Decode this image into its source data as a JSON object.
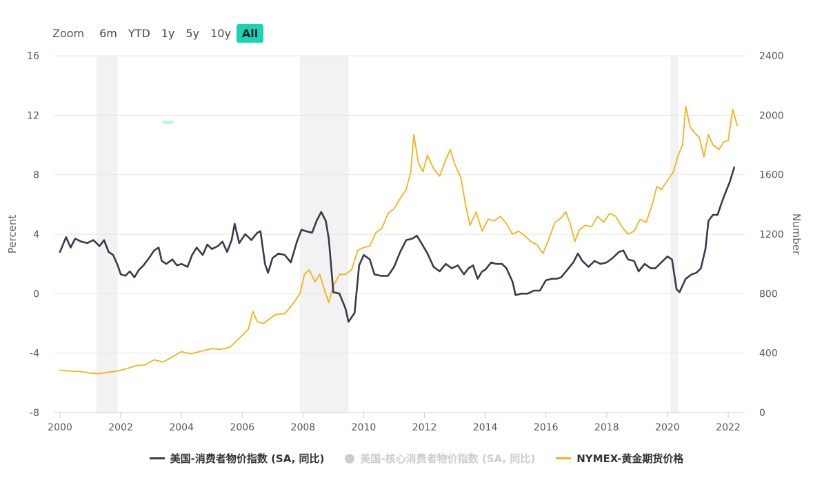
{
  "zoom": {
    "label": "Zoom",
    "buttons": [
      "6m",
      "YTD",
      "1y",
      "5y",
      "10y",
      "All"
    ],
    "active": "All",
    "active_color": "#18d4b4"
  },
  "chart_data": {
    "type": "line",
    "x_ticks": [
      "2000",
      "2002",
      "2004",
      "2006",
      "2008",
      "2010",
      "2012",
      "2014",
      "2016",
      "2018",
      "2020",
      "2022"
    ],
    "xlim": [
      2000,
      2022.5
    ],
    "left_axis": {
      "label": "Percent",
      "ylim": [
        -8,
        16
      ],
      "ticks": [
        -8,
        -4,
        0,
        4,
        8,
        12,
        16
      ]
    },
    "right_axis": {
      "label": "Number",
      "ylim": [
        0,
        2400
      ],
      "ticks": [
        0,
        400,
        800,
        1200,
        1600,
        2000,
        2400
      ]
    },
    "recession_bands": [
      [
        2001.2,
        2001.9
      ],
      [
        2007.9,
        2009.5
      ],
      [
        2020.1,
        2020.35
      ]
    ],
    "grid": "horizontal",
    "legend_position": "bottom-center",
    "series": [
      {
        "name": "美国-消费者物价指数 (SA, 同比)",
        "axis": "left",
        "color": "#363b4d",
        "visible": true,
        "points": [
          [
            2000.0,
            2.8
          ],
          [
            2000.2,
            3.8
          ],
          [
            2000.35,
            3.1
          ],
          [
            2000.5,
            3.7
          ],
          [
            2000.7,
            3.5
          ],
          [
            2000.9,
            3.4
          ],
          [
            2001.1,
            3.6
          ],
          [
            2001.3,
            3.2
          ],
          [
            2001.45,
            3.6
          ],
          [
            2001.6,
            2.8
          ],
          [
            2001.75,
            2.6
          ],
          [
            2001.9,
            1.9
          ],
          [
            2002.0,
            1.3
          ],
          [
            2002.15,
            1.2
          ],
          [
            2002.3,
            1.5
          ],
          [
            2002.45,
            1.1
          ],
          [
            2002.6,
            1.6
          ],
          [
            2002.75,
            1.9
          ],
          [
            2002.9,
            2.3
          ],
          [
            2003.1,
            2.9
          ],
          [
            2003.25,
            3.1
          ],
          [
            2003.35,
            2.2
          ],
          [
            2003.5,
            2.0
          ],
          [
            2003.7,
            2.3
          ],
          [
            2003.85,
            1.9
          ],
          [
            2004.0,
            2.0
          ],
          [
            2004.2,
            1.8
          ],
          [
            2004.35,
            2.6
          ],
          [
            2004.5,
            3.1
          ],
          [
            2004.7,
            2.6
          ],
          [
            2004.85,
            3.3
          ],
          [
            2005.0,
            3.0
          ],
          [
            2005.2,
            3.2
          ],
          [
            2005.35,
            3.5
          ],
          [
            2005.5,
            2.8
          ],
          [
            2005.65,
            3.6
          ],
          [
            2005.75,
            4.7
          ],
          [
            2005.9,
            3.4
          ],
          [
            2006.1,
            4.0
          ],
          [
            2006.3,
            3.6
          ],
          [
            2006.5,
            4.1
          ],
          [
            2006.6,
            4.2
          ],
          [
            2006.75,
            2.0
          ],
          [
            2006.85,
            1.4
          ],
          [
            2007.0,
            2.4
          ],
          [
            2007.2,
            2.7
          ],
          [
            2007.4,
            2.6
          ],
          [
            2007.6,
            2.1
          ],
          [
            2007.8,
            3.5
          ],
          [
            2007.95,
            4.3
          ],
          [
            2008.1,
            4.2
          ],
          [
            2008.3,
            4.1
          ],
          [
            2008.45,
            4.9
          ],
          [
            2008.6,
            5.5
          ],
          [
            2008.75,
            4.9
          ],
          [
            2008.85,
            3.7
          ],
          [
            2009.0,
            0.1
          ],
          [
            2009.2,
            0.0
          ],
          [
            2009.4,
            -1.0
          ],
          [
            2009.5,
            -1.9
          ],
          [
            2009.7,
            -1.3
          ],
          [
            2009.85,
            1.9
          ],
          [
            2010.0,
            2.6
          ],
          [
            2010.2,
            2.3
          ],
          [
            2010.35,
            1.3
          ],
          [
            2010.55,
            1.2
          ],
          [
            2010.8,
            1.2
          ],
          [
            2011.0,
            1.8
          ],
          [
            2011.2,
            2.8
          ],
          [
            2011.4,
            3.6
          ],
          [
            2011.6,
            3.7
          ],
          [
            2011.75,
            3.9
          ],
          [
            2011.9,
            3.4
          ],
          [
            2012.1,
            2.7
          ],
          [
            2012.3,
            1.8
          ],
          [
            2012.5,
            1.5
          ],
          [
            2012.7,
            2.0
          ],
          [
            2012.9,
            1.7
          ],
          [
            2013.1,
            1.9
          ],
          [
            2013.3,
            1.3
          ],
          [
            2013.45,
            1.7
          ],
          [
            2013.6,
            1.9
          ],
          [
            2013.75,
            1.0
          ],
          [
            2013.9,
            1.5
          ],
          [
            2014.0,
            1.6
          ],
          [
            2014.2,
            2.1
          ],
          [
            2014.35,
            2.0
          ],
          [
            2014.55,
            2.0
          ],
          [
            2014.7,
            1.7
          ],
          [
            2014.9,
            0.8
          ],
          [
            2015.0,
            -0.1
          ],
          [
            2015.2,
            0.0
          ],
          [
            2015.4,
            0.0
          ],
          [
            2015.6,
            0.2
          ],
          [
            2015.8,
            0.2
          ],
          [
            2016.0,
            0.9
          ],
          [
            2016.2,
            1.0
          ],
          [
            2016.35,
            1.0
          ],
          [
            2016.5,
            1.1
          ],
          [
            2016.7,
            1.6
          ],
          [
            2016.9,
            2.1
          ],
          [
            2017.05,
            2.7
          ],
          [
            2017.2,
            2.2
          ],
          [
            2017.4,
            1.8
          ],
          [
            2017.6,
            2.2
          ],
          [
            2017.8,
            2.0
          ],
          [
            2018.0,
            2.1
          ],
          [
            2018.2,
            2.4
          ],
          [
            2018.4,
            2.8
          ],
          [
            2018.55,
            2.9
          ],
          [
            2018.7,
            2.3
          ],
          [
            2018.9,
            2.2
          ],
          [
            2019.05,
            1.5
          ],
          [
            2019.25,
            2.0
          ],
          [
            2019.45,
            1.7
          ],
          [
            2019.6,
            1.7
          ],
          [
            2019.8,
            2.1
          ],
          [
            2020.0,
            2.5
          ],
          [
            2020.15,
            2.3
          ],
          [
            2020.3,
            0.3
          ],
          [
            2020.4,
            0.1
          ],
          [
            2020.6,
            1.0
          ],
          [
            2020.8,
            1.3
          ],
          [
            2020.95,
            1.4
          ],
          [
            2021.1,
            1.7
          ],
          [
            2021.25,
            3.0
          ],
          [
            2021.35,
            4.9
          ],
          [
            2021.5,
            5.3
          ],
          [
            2021.65,
            5.3
          ],
          [
            2021.8,
            6.2
          ],
          [
            2021.95,
            7.0
          ],
          [
            2022.05,
            7.5
          ],
          [
            2022.2,
            8.5
          ]
        ]
      },
      {
        "name": "美国-核心消费者物价指数 (SA, 同比)",
        "axis": "left",
        "color": "#cccccc",
        "visible": false,
        "points": []
      },
      {
        "name": "NYMEX-黄金期货价格",
        "axis": "right",
        "color": "#f5b114",
        "visible": true,
        "points": [
          [
            2000.0,
            285
          ],
          [
            2000.3,
            280
          ],
          [
            2000.7,
            275
          ],
          [
            2001.0,
            265
          ],
          [
            2001.3,
            262
          ],
          [
            2001.6,
            272
          ],
          [
            2001.9,
            280
          ],
          [
            2002.2,
            295
          ],
          [
            2002.5,
            315
          ],
          [
            2002.8,
            320
          ],
          [
            2003.1,
            355
          ],
          [
            2003.4,
            340
          ],
          [
            2003.7,
            375
          ],
          [
            2004.0,
            410
          ],
          [
            2004.3,
            395
          ],
          [
            2004.7,
            415
          ],
          [
            2005.0,
            430
          ],
          [
            2005.3,
            425
          ],
          [
            2005.6,
            440
          ],
          [
            2005.9,
            500
          ],
          [
            2006.2,
            560
          ],
          [
            2006.35,
            680
          ],
          [
            2006.5,
            610
          ],
          [
            2006.7,
            600
          ],
          [
            2006.9,
            630
          ],
          [
            2007.1,
            660
          ],
          [
            2007.4,
            665
          ],
          [
            2007.7,
            740
          ],
          [
            2007.9,
            800
          ],
          [
            2008.05,
            930
          ],
          [
            2008.2,
            960
          ],
          [
            2008.4,
            880
          ],
          [
            2008.55,
            930
          ],
          [
            2008.7,
            830
          ],
          [
            2008.85,
            740
          ],
          [
            2009.0,
            850
          ],
          [
            2009.2,
            930
          ],
          [
            2009.4,
            930
          ],
          [
            2009.6,
            960
          ],
          [
            2009.8,
            1090
          ],
          [
            2010.0,
            1110
          ],
          [
            2010.2,
            1120
          ],
          [
            2010.4,
            1210
          ],
          [
            2010.6,
            1240
          ],
          [
            2010.8,
            1340
          ],
          [
            2011.0,
            1370
          ],
          [
            2011.2,
            1440
          ],
          [
            2011.4,
            1500
          ],
          [
            2011.55,
            1620
          ],
          [
            2011.65,
            1870
          ],
          [
            2011.8,
            1680
          ],
          [
            2011.95,
            1620
          ],
          [
            2012.1,
            1730
          ],
          [
            2012.3,
            1640
          ],
          [
            2012.5,
            1590
          ],
          [
            2012.7,
            1700
          ],
          [
            2012.85,
            1770
          ],
          [
            2013.0,
            1670
          ],
          [
            2013.2,
            1580
          ],
          [
            2013.35,
            1400
          ],
          [
            2013.5,
            1260
          ],
          [
            2013.7,
            1350
          ],
          [
            2013.9,
            1220
          ],
          [
            2014.1,
            1300
          ],
          [
            2014.3,
            1290
          ],
          [
            2014.5,
            1320
          ],
          [
            2014.7,
            1270
          ],
          [
            2014.9,
            1200
          ],
          [
            2015.1,
            1220
          ],
          [
            2015.3,
            1190
          ],
          [
            2015.5,
            1150
          ],
          [
            2015.7,
            1130
          ],
          [
            2015.9,
            1070
          ],
          [
            2016.1,
            1170
          ],
          [
            2016.3,
            1280
          ],
          [
            2016.5,
            1310
          ],
          [
            2016.65,
            1350
          ],
          [
            2016.8,
            1270
          ],
          [
            2016.95,
            1150
          ],
          [
            2017.1,
            1230
          ],
          [
            2017.3,
            1260
          ],
          [
            2017.5,
            1250
          ],
          [
            2017.7,
            1320
          ],
          [
            2017.9,
            1280
          ],
          [
            2018.1,
            1340
          ],
          [
            2018.3,
            1320
          ],
          [
            2018.5,
            1250
          ],
          [
            2018.7,
            1200
          ],
          [
            2018.9,
            1220
          ],
          [
            2019.1,
            1300
          ],
          [
            2019.3,
            1280
          ],
          [
            2019.5,
            1400
          ],
          [
            2019.65,
            1520
          ],
          [
            2019.8,
            1500
          ],
          [
            2020.0,
            1560
          ],
          [
            2020.2,
            1620
          ],
          [
            2020.35,
            1730
          ],
          [
            2020.5,
            1800
          ],
          [
            2020.6,
            2060
          ],
          [
            2020.75,
            1920
          ],
          [
            2020.9,
            1880
          ],
          [
            2021.05,
            1850
          ],
          [
            2021.2,
            1720
          ],
          [
            2021.35,
            1870
          ],
          [
            2021.5,
            1800
          ],
          [
            2021.7,
            1770
          ],
          [
            2021.85,
            1820
          ],
          [
            2022.0,
            1830
          ],
          [
            2022.15,
            2040
          ],
          [
            2022.3,
            1930
          ]
        ]
      }
    ]
  }
}
